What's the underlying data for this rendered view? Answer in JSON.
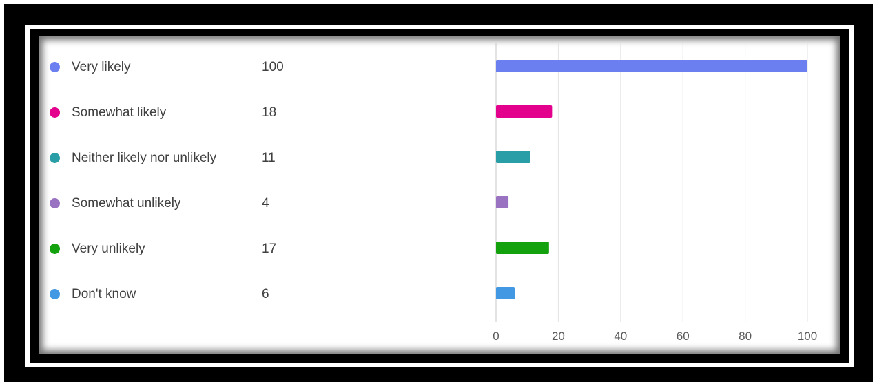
{
  "chart_data": {
    "type": "bar",
    "orientation": "horizontal",
    "categories": [
      "Very likely",
      "Somewhat likely",
      "Neither likely nor unlikely",
      "Somewhat unlikely",
      "Very unlikely",
      "Don't know"
    ],
    "values": [
      100,
      18,
      11,
      4,
      17,
      6
    ],
    "colors": [
      "#6b7ff0",
      "#e3008c",
      "#2a9ea6",
      "#9a72c2",
      "#13a10e",
      "#4298e2"
    ],
    "xlim": [
      0,
      100
    ],
    "xticks": [
      "0",
      "20",
      "40",
      "60",
      "80",
      "100"
    ],
    "grid": true,
    "legend_position": "left"
  },
  "legend": [
    {
      "label": "Very likely",
      "count": "100"
    },
    {
      "label": "Somewhat likely",
      "count": "18"
    },
    {
      "label": "Neither likely nor unlikely",
      "count": "11"
    },
    {
      "label": "Somewhat unlikely",
      "count": "4"
    },
    {
      "label": "Very unlikely",
      "count": "17"
    },
    {
      "label": "Don't know",
      "count": "6"
    }
  ]
}
